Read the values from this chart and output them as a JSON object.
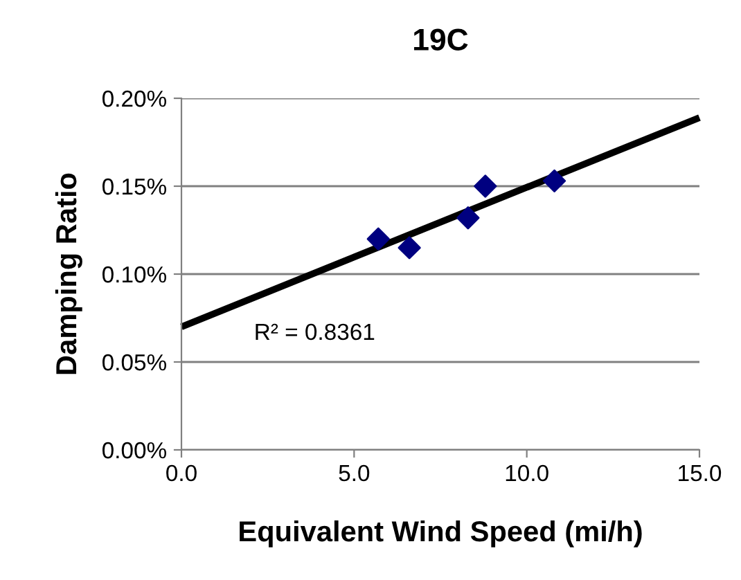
{
  "chart_data": {
    "type": "scatter",
    "title": "19C",
    "xlabel": "Equivalent Wind Speed (mi/h)",
    "ylabel": "Damping Ratio",
    "xlim": [
      0,
      15
    ],
    "xticks": [
      {
        "value": 0,
        "label": "0.0"
      },
      {
        "value": 5,
        "label": "5.0"
      },
      {
        "value": 10,
        "label": "10.0"
      },
      {
        "value": 15,
        "label": "15.0"
      }
    ],
    "ylim": [
      0,
      0.2
    ],
    "yticks": [
      {
        "value": 0,
        "label": "0.00%"
      },
      {
        "value": 0.05,
        "label": "0.05%"
      },
      {
        "value": 0.1,
        "label": "0.10%"
      },
      {
        "value": 0.15,
        "label": "0.15%"
      },
      {
        "value": 0.2,
        "label": "0.20%"
      }
    ],
    "grid": "y",
    "series": [
      {
        "marker": "diamond",
        "color": "#000080",
        "x": [
          5.7,
          6.6,
          8.3,
          8.8,
          10.8
        ],
        "values": [
          0.12,
          0.115,
          0.132,
          0.15,
          0.153
        ]
      },
      {
        "type": "line",
        "color": "#000000",
        "x": [
          0,
          15
        ],
        "values": [
          0.07,
          0.189
        ]
      }
    ],
    "annotations": [
      "R² = 0.8361"
    ]
  }
}
